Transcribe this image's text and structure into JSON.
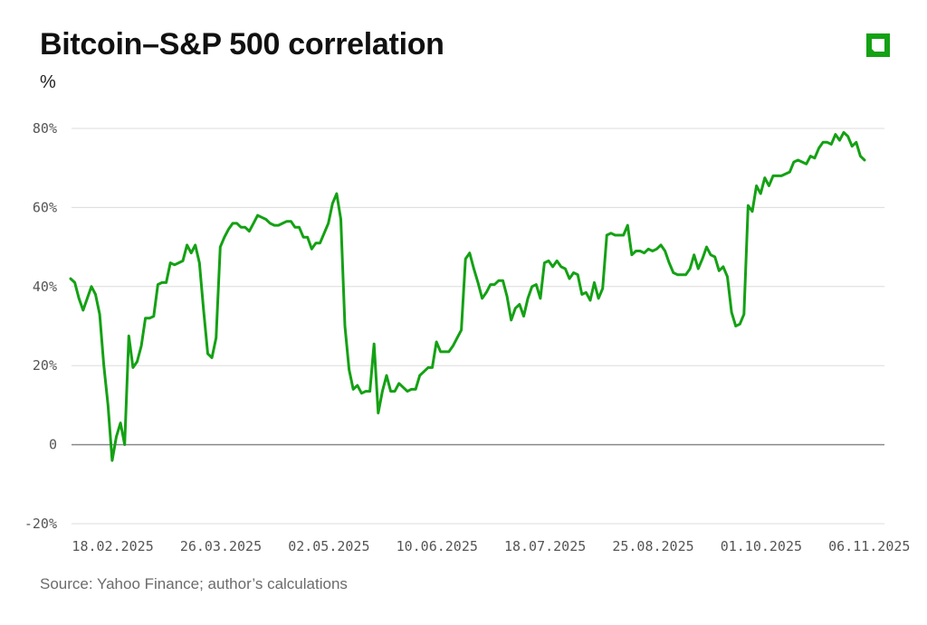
{
  "header": {
    "title": "Bitcoin–S&P 500 correlation",
    "unit": "%"
  },
  "footer": {
    "source": "Source: Yahoo Finance; author’s calculations"
  },
  "logo": {
    "icon": "square-logo-icon",
    "color": "#14a114"
  },
  "chart_data": {
    "type": "line",
    "title": "Bitcoin–S&P 500 correlation",
    "xlabel": "",
    "ylabel": "%",
    "ylim": [
      -20,
      80
    ],
    "yticks": [
      {
        "value": 80,
        "label": "80%"
      },
      {
        "value": 60,
        "label": "60%"
      },
      {
        "value": 40,
        "label": "40%"
      },
      {
        "value": 20,
        "label": "20%"
      },
      {
        "value": 0,
        "label": "0"
      },
      {
        "value": -20,
        "label": "-20%"
      }
    ],
    "xticks": [
      {
        "index": 1,
        "label": "18.02.2025"
      },
      {
        "index": 27,
        "label": "26.03.2025"
      },
      {
        "index": 53,
        "label": "02.05.2025"
      },
      {
        "index": 79,
        "label": "10.06.2025"
      },
      {
        "index": 105,
        "label": "18.07.2025"
      },
      {
        "index": 131,
        "label": "25.08.2025"
      },
      {
        "index": 157,
        "label": "01.10.2025"
      },
      {
        "index": 183,
        "label": "06.11.2025"
      }
    ],
    "grid": true,
    "color": "#14a114",
    "series": [
      {
        "name": "Bitcoin–S&P 500 correlation",
        "values": [
          42,
          41,
          37,
          34,
          37,
          40,
          38,
          33,
          20,
          10,
          -4,
          2,
          5.5,
          0,
          27.5,
          19.5,
          21,
          25,
          32,
          32,
          32.5,
          40.5,
          41,
          41,
          46,
          45.5,
          46,
          46.5,
          50.5,
          48.5,
          50.5,
          46,
          34,
          23,
          22,
          27,
          50,
          52.5,
          54.5,
          56,
          56,
          55,
          55,
          54,
          56,
          58,
          57.5,
          57,
          56,
          55.5,
          55.5,
          56,
          56.5,
          56.5,
          55,
          55,
          52.5,
          52.5,
          49.5,
          51,
          51,
          53.5,
          56,
          61,
          63.5,
          57,
          30,
          19,
          14,
          15,
          13,
          13.5,
          13.5,
          25.5,
          8,
          13.5,
          17.5,
          13.5,
          13.5,
          15.5,
          14.5,
          13.5,
          14,
          14,
          17.5,
          18.5,
          19.5,
          19.5,
          26,
          23.5,
          23.5,
          23.5,
          25,
          27,
          29,
          47,
          48.5,
          44.5,
          41,
          37,
          38.5,
          40.5,
          40.5,
          41.5,
          41.5,
          37.5,
          31.5,
          34.5,
          35.5,
          32.5,
          37,
          40,
          40.5,
          37,
          46,
          46.5,
          45,
          46.5,
          45,
          44.5,
          42,
          43.5,
          43,
          38,
          38.5,
          36.5,
          41,
          37,
          39.5,
          53,
          53.5,
          53,
          53,
          53,
          55.5,
          48,
          49,
          49,
          48.5,
          49.5,
          49,
          49.5,
          50.5,
          49,
          46,
          43.5,
          43,
          43,
          43,
          44.5,
          48,
          44.5,
          47,
          50,
          48,
          47.5,
          44,
          45,
          42.5,
          33.5,
          30,
          30.5,
          33,
          60.5,
          59,
          65.5,
          63.5,
          67.5,
          65.5,
          68,
          68,
          68,
          68.5,
          69,
          71.5,
          72,
          71.5,
          71,
          73,
          72.5,
          75,
          76.5,
          76.5,
          76,
          78.5,
          77,
          79,
          78,
          75.5,
          76.5,
          73,
          72
        ]
      }
    ]
  }
}
